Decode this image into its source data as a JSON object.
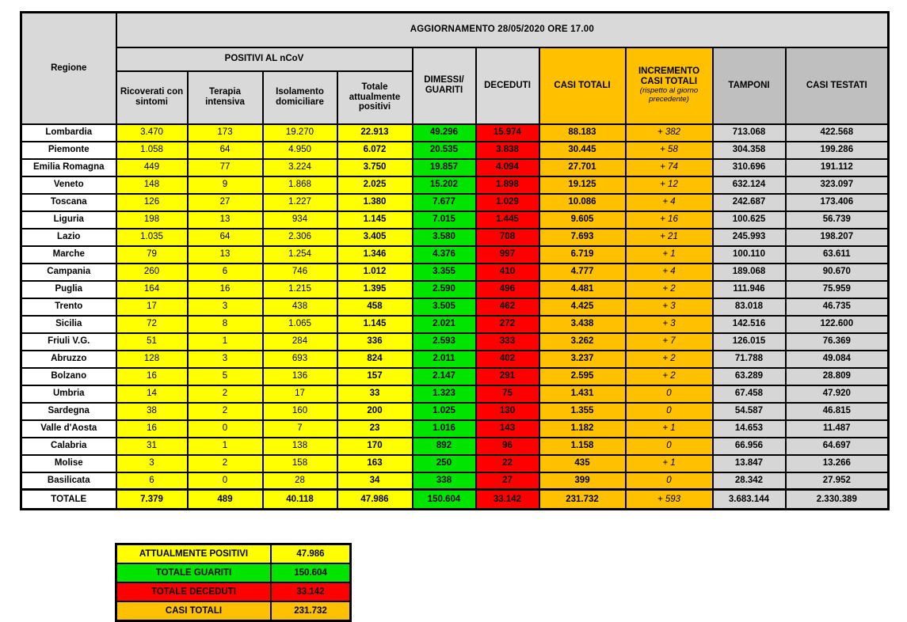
{
  "chart_data": {
    "type": "table",
    "title": "AGGIORNAMENTO 28/05/2020 ORE 17.00",
    "headers": {
      "regione": "Regione",
      "positivi_group": "POSITIVI AL nCoV",
      "ricoverati": "Ricoverati con sintomi",
      "terapia": "Terapia intensiva",
      "isolamento": "Isolamento domiciliare",
      "totale_positivi": "Totale attualmente positivi",
      "dimessi": "DIMESSI/ GUARITI",
      "deceduti": "DECEDUTI",
      "casi_totali": "CASI TOTALI",
      "incremento": "INCREMENTO CASI TOTALI",
      "incremento_note": "(rispetto al giorno precedente)",
      "tamponi": "TAMPONI",
      "casi_testati": "CASI TESTATI"
    },
    "column_order": [
      "Regione",
      "Ricoverati con sintomi",
      "Terapia intensiva",
      "Isolamento domiciliare",
      "Totale attualmente positivi",
      "DIMESSI/GUARITI",
      "DECEDUTI",
      "CASI TOTALI",
      "INCREMENTO CASI TOTALI (rispetto al giorno precedente)",
      "TAMPONI",
      "CASI TESTATI"
    ],
    "rows": [
      [
        "Lombardia",
        "3.470",
        "173",
        "19.270",
        "22.913",
        "49.296",
        "15.974",
        "88.183",
        "+ 382",
        "713.068",
        "422.568"
      ],
      [
        "Piemonte",
        "1.058",
        "64",
        "4.950",
        "6.072",
        "20.535",
        "3.838",
        "30.445",
        "+ 58",
        "304.358",
        "199.286"
      ],
      [
        "Emilia Romagna",
        "449",
        "77",
        "3.224",
        "3.750",
        "19.857",
        "4.094",
        "27.701",
        "+ 74",
        "310.696",
        "191.112"
      ],
      [
        "Veneto",
        "148",
        "9",
        "1.868",
        "2.025",
        "15.202",
        "1.898",
        "19.125",
        "+ 12",
        "632.124",
        "323.097"
      ],
      [
        "Toscana",
        "126",
        "27",
        "1.227",
        "1.380",
        "7.677",
        "1.029",
        "10.086",
        "+ 4",
        "242.687",
        "173.406"
      ],
      [
        "Liguria",
        "198",
        "13",
        "934",
        "1.145",
        "7.015",
        "1.445",
        "9.605",
        "+ 16",
        "100.625",
        "56.739"
      ],
      [
        "Lazio",
        "1.035",
        "64",
        "2.306",
        "3.405",
        "3.580",
        "708",
        "7.693",
        "+ 21",
        "245.993",
        "198.207"
      ],
      [
        "Marche",
        "79",
        "13",
        "1.254",
        "1.346",
        "4.376",
        "997",
        "6.719",
        "+ 1",
        "100.110",
        "63.611"
      ],
      [
        "Campania",
        "260",
        "6",
        "746",
        "1.012",
        "3.355",
        "410",
        "4.777",
        "+ 4",
        "189.068",
        "90.670"
      ],
      [
        "Puglia",
        "164",
        "16",
        "1.215",
        "1.395",
        "2.590",
        "496",
        "4.481",
        "+ 2",
        "111.946",
        "75.959"
      ],
      [
        "Trento",
        "17",
        "3",
        "438",
        "458",
        "3.505",
        "462",
        "4.425",
        "+ 3",
        "83.018",
        "46.735"
      ],
      [
        "Sicilia",
        "72",
        "8",
        "1.065",
        "1.145",
        "2.021",
        "272",
        "3.438",
        "+ 3",
        "142.516",
        "122.600"
      ],
      [
        "Friuli V.G.",
        "51",
        "1",
        "284",
        "336",
        "2.593",
        "333",
        "3.262",
        "+ 7",
        "126.015",
        "76.369"
      ],
      [
        "Abruzzo",
        "128",
        "3",
        "693",
        "824",
        "2.011",
        "402",
        "3.237",
        "+ 2",
        "71.788",
        "49.084"
      ],
      [
        "Bolzano",
        "16",
        "5",
        "136",
        "157",
        "2.147",
        "291",
        "2.595",
        "+ 2",
        "63.289",
        "28.809"
      ],
      [
        "Umbria",
        "14",
        "2",
        "17",
        "33",
        "1.323",
        "75",
        "1.431",
        "0",
        "67.458",
        "47.920"
      ],
      [
        "Sardegna",
        "38",
        "2",
        "160",
        "200",
        "1.025",
        "130",
        "1.355",
        "0",
        "54.587",
        "46.815"
      ],
      [
        "Valle d'Aosta",
        "16",
        "0",
        "7",
        "23",
        "1.016",
        "143",
        "1.182",
        "+ 1",
        "14.653",
        "11.487"
      ],
      [
        "Calabria",
        "31",
        "1",
        "138",
        "170",
        "892",
        "96",
        "1.158",
        "0",
        "66.956",
        "64.697"
      ],
      [
        "Molise",
        "3",
        "2",
        "158",
        "163",
        "250",
        "22",
        "435",
        "+ 1",
        "13.847",
        "13.266"
      ],
      [
        "Basilicata",
        "6",
        "0",
        "28",
        "34",
        "338",
        "27",
        "399",
        "0",
        "28.342",
        "27.952"
      ]
    ],
    "total_row": [
      "TOTALE",
      "7.379",
      "489",
      "40.118",
      "47.986",
      "150.604",
      "33.142",
      "231.732",
      "+ 593",
      "3.683.144",
      "2.330.389"
    ],
    "summary": [
      {
        "label": "ATTUALMENTE POSITIVI",
        "value": "47.986",
        "color": "#FFFF00"
      },
      {
        "label": "TOTALE GUARITI",
        "value": "150.604",
        "color": "#00E400"
      },
      {
        "label": "TOTALE DECEDUTI",
        "value": "33.142",
        "color": "#FF0000"
      },
      {
        "label": "CASI TOTALI",
        "value": "231.732",
        "color": "#FFC000"
      }
    ],
    "colors": {
      "attualmente_positivi": "#FFFF00",
      "guariti": "#00E400",
      "deceduti": "#FF0000",
      "casi_totali": "#FFC000",
      "header_gray": "#D9D9D9",
      "tamponi_header_gray": "#BFBFBF",
      "tamponi_cell_gray": "#D6D6D6",
      "border": "#000000"
    }
  }
}
